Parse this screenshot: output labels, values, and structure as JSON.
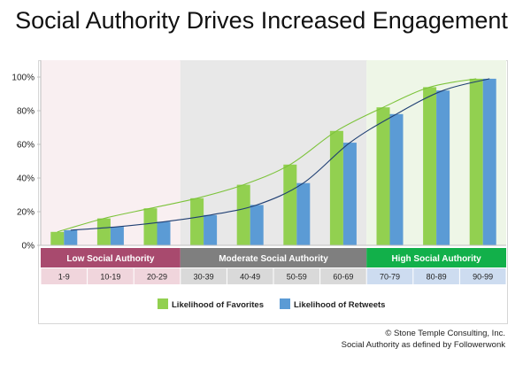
{
  "chart_data": {
    "type": "bar",
    "title": "Social Authority Drives Increased Engagement",
    "categories": [
      "1-9",
      "10-19",
      "20-29",
      "30-39",
      "40-49",
      "50-59",
      "60-69",
      "70-79",
      "80-89",
      "90-99"
    ],
    "series": [
      {
        "name": "Likelihood of Favorites",
        "values": [
          8,
          16,
          22,
          28,
          36,
          48,
          68,
          82,
          94,
          99
        ],
        "color": "#92d050"
      },
      {
        "name": "Likelihood of Retweets",
        "values": [
          9,
          11,
          14,
          18,
          24,
          37,
          61,
          78,
          92,
          99
        ],
        "color": "#5b9bd5"
      }
    ],
    "ylim": [
      0,
      110
    ],
    "yticks": [
      0,
      20,
      40,
      60,
      80,
      100
    ],
    "ytick_labels": [
      "0%",
      "20%",
      "40%",
      "60%",
      "80%",
      "100%"
    ],
    "grid": false,
    "legend_position": "bottom",
    "bands": [
      {
        "label": "Low Social Authority",
        "from": 0,
        "to": 2,
        "header_color": "#a84a6e",
        "bg_color": "#f9eff1",
        "cell_color": "#f0d5dc"
      },
      {
        "label": "Moderate Social Authority",
        "from": 3,
        "to": 6,
        "header_color": "#7f7f7f",
        "bg_color": "#e8e8e8",
        "cell_color": "#d9d9d9"
      },
      {
        "label": "High Social Authority",
        "from": 7,
        "to": 9,
        "header_color": "#12b04a",
        "bg_color": "#eef6e7",
        "cell_color": "#cddcf0"
      }
    ]
  },
  "footer": {
    "copyright": "© Stone Temple Consulting, Inc.",
    "note": "Social Authority as defined by Followerwonk"
  }
}
